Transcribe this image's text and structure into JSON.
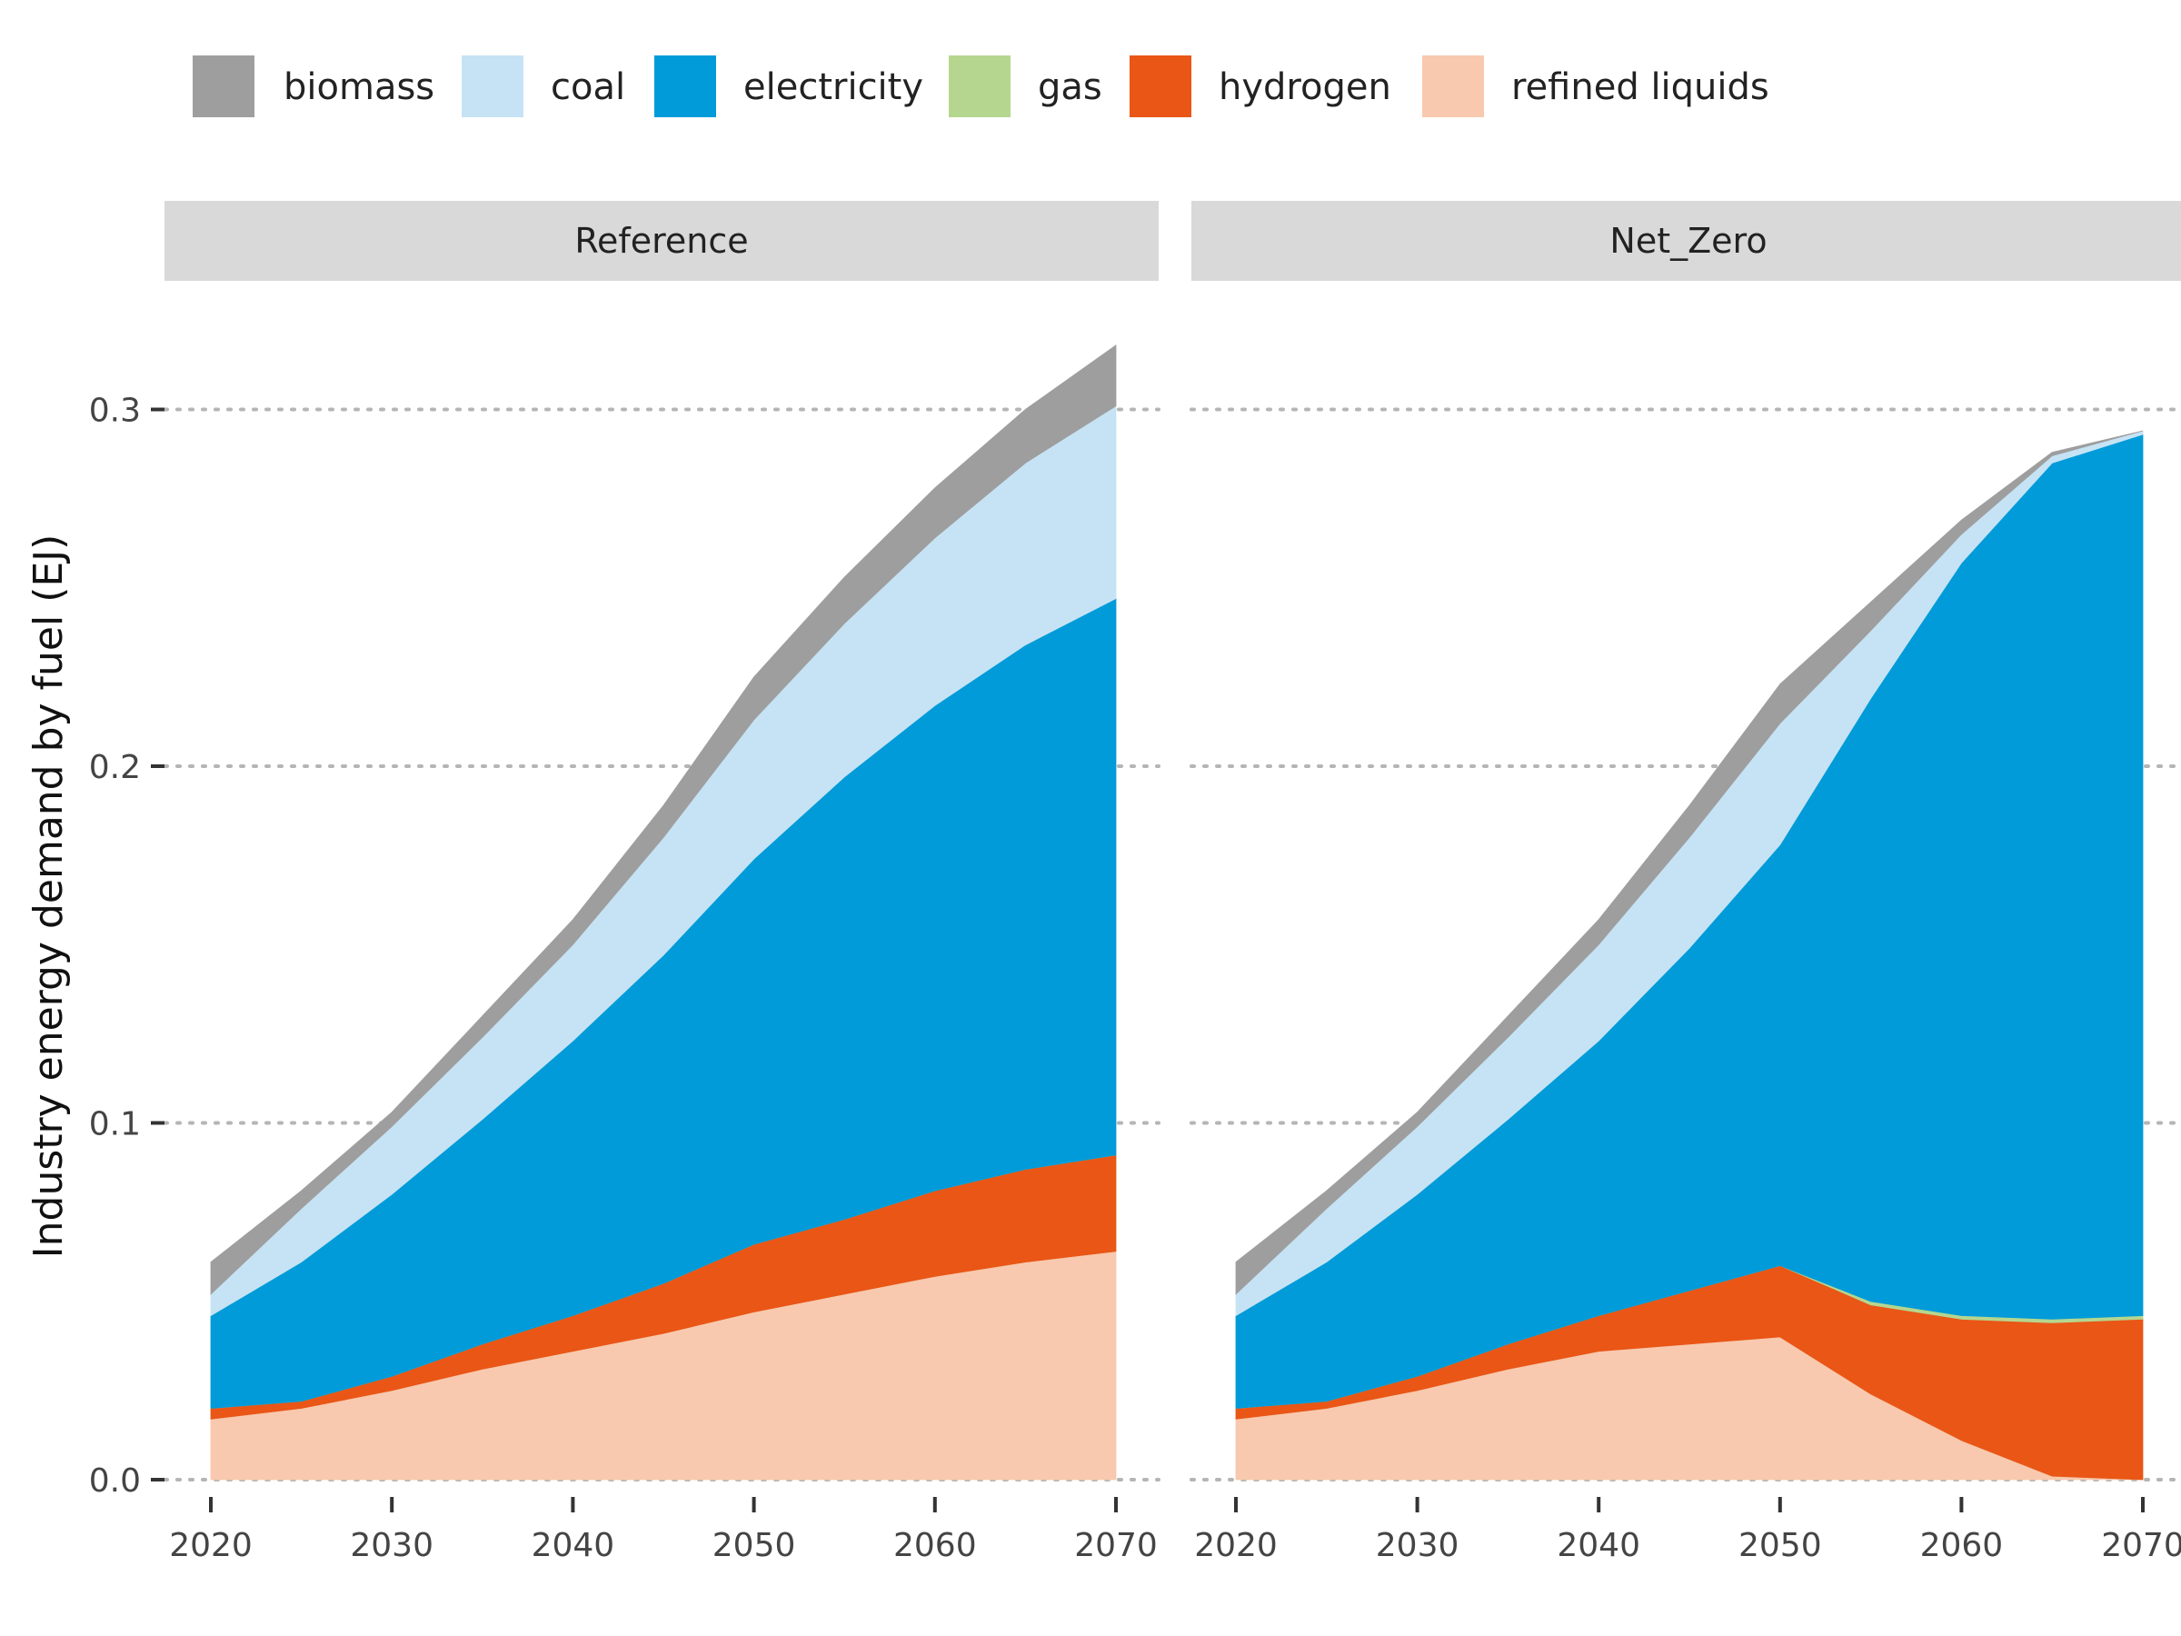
{
  "chart_data": {
    "type": "area",
    "stacked": true,
    "ylabel": "Industry energy demand by fuel (EJ)",
    "xlabel": "",
    "ylim": [
      0,
      0.32
    ],
    "yticks": [
      0.0,
      0.1,
      0.2,
      0.3
    ],
    "ytick_labels": [
      "0.0",
      "0.1",
      "0.2",
      "0.3"
    ],
    "xticks": [
      2020,
      2030,
      2040,
      2050,
      2060,
      2070
    ],
    "xtick_labels": [
      "2020",
      "2030",
      "2040",
      "2050",
      "2060",
      "2070"
    ],
    "grid": "horizontal dotted",
    "legend": {
      "position": "top",
      "entries": [
        {
          "name": "biomass",
          "color": "#9e9e9e"
        },
        {
          "name": "coal",
          "color": "#c6e3f5"
        },
        {
          "name": "electricity",
          "color": "#009bd8"
        },
        {
          "name": "gas",
          "color": "#b5d68f"
        },
        {
          "name": "hydrogen",
          "color": "#e95616"
        },
        {
          "name": "refined liquids",
          "color": "#f8c9ae"
        }
      ]
    },
    "x": [
      2020,
      2025,
      2030,
      2035,
      2040,
      2045,
      2050,
      2055,
      2060,
      2065,
      2070
    ],
    "panels": [
      {
        "title": "Reference",
        "series": [
          {
            "name": "refined liquids",
            "values": [
              0.017,
              0.02,
              0.025,
              0.031,
              0.036,
              0.041,
              0.047,
              0.052,
              0.057,
              0.061,
              0.064
            ]
          },
          {
            "name": "hydrogen",
            "values": [
              0.003,
              0.002,
              0.004,
              0.007,
              0.01,
              0.014,
              0.019,
              0.021,
              0.024,
              0.026,
              0.027
            ]
          },
          {
            "name": "gas",
            "values": [
              0.0,
              0.0,
              0.0,
              0.0,
              0.0,
              0.0,
              0.0,
              0.0,
              0.0,
              0.0,
              0.0
            ]
          },
          {
            "name": "electricity",
            "values": [
              0.026,
              0.039,
              0.051,
              0.063,
              0.077,
              0.092,
              0.108,
              0.124,
              0.136,
              0.147,
              0.156
            ]
          },
          {
            "name": "coal",
            "values": [
              0.006,
              0.015,
              0.019,
              0.023,
              0.027,
              0.033,
              0.039,
              0.043,
              0.047,
              0.051,
              0.054
            ]
          },
          {
            "name": "biomass",
            "values": [
              0.009,
              0.005,
              0.004,
              0.006,
              0.007,
              0.009,
              0.012,
              0.013,
              0.014,
              0.015,
              0.017
            ]
          }
        ]
      },
      {
        "title": "Net_Zero",
        "series": [
          {
            "name": "refined liquids",
            "values": [
              0.017,
              0.02,
              0.025,
              0.031,
              0.036,
              0.038,
              0.04,
              0.024,
              0.011,
              0.001,
              0.0
            ]
          },
          {
            "name": "hydrogen",
            "values": [
              0.003,
              0.002,
              0.004,
              0.007,
              0.01,
              0.015,
              0.02,
              0.025,
              0.034,
              0.043,
              0.045
            ]
          },
          {
            "name": "gas",
            "values": [
              0.0,
              0.0,
              0.0,
              0.0,
              0.0,
              0.0,
              0.0,
              0.001,
              0.001,
              0.001,
              0.001
            ]
          },
          {
            "name": "electricity",
            "values": [
              0.026,
              0.039,
              0.051,
              0.063,
              0.077,
              0.096,
              0.118,
              0.169,
              0.211,
              0.24,
              0.247
            ]
          },
          {
            "name": "coal",
            "values": [
              0.006,
              0.015,
              0.019,
              0.023,
              0.027,
              0.031,
              0.034,
              0.019,
              0.008,
              0.002,
              0.001
            ]
          },
          {
            "name": "biomass",
            "values": [
              0.009,
              0.005,
              0.004,
              0.006,
              0.007,
              0.009,
              0.011,
              0.008,
              0.004,
              0.001,
              0.0
            ]
          }
        ]
      }
    ]
  }
}
